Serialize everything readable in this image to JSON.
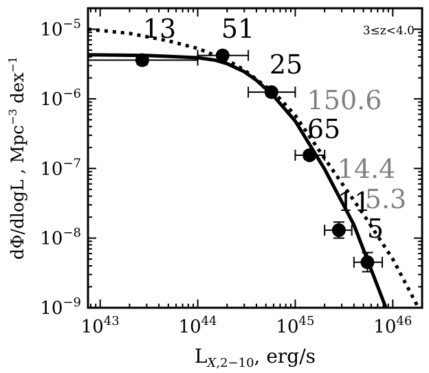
{
  "chart_data": {
    "type": "scatter",
    "title": "",
    "xlabel": "L_{X,2-10}, erg/s",
    "ylabel": "dΦ/dlogL , Mpc^{-3} dex^{-1}",
    "xscale": "log",
    "yscale": "log",
    "xlim": [
      7.5e+42,
      2e+46
    ],
    "ylim": [
      1e-09,
      2e-05
    ],
    "annotation": "3≤z<4.0",
    "x_ticks": [
      {
        "value": 1e+43,
        "base": "10",
        "exp": "43"
      },
      {
        "value": 1e+44,
        "base": "10",
        "exp": "44"
      },
      {
        "value": 1e+45,
        "base": "10",
        "exp": "45"
      },
      {
        "value": 1e+46,
        "base": "10",
        "exp": "46"
      }
    ],
    "y_ticks": [
      {
        "value": 1e-09,
        "base": "10",
        "exp": "−9"
      },
      {
        "value": 1e-08,
        "base": "10",
        "exp": "−8"
      },
      {
        "value": 1e-07,
        "base": "10",
        "exp": "−7"
      },
      {
        "value": 1e-06,
        "base": "10",
        "exp": "−6"
      },
      {
        "value": 1e-05,
        "base": "10",
        "exp": "−5"
      }
    ],
    "points": [
      {
        "x": 2.7e+43,
        "y": 3.6e-06,
        "xerr": [
          7.5e+42,
          1e+44
        ],
        "yerr": [
          3.1e-06,
          4.2e-06
        ],
        "count": "13"
      },
      {
        "x": 1.8e+44,
        "y": 4.2e-06,
        "xerr": [
          1e+44,
          3.3e+44
        ],
        "yerr": [
          3.9e-06,
          4.6e-06
        ],
        "count": "51"
      },
      {
        "x": 5.7e+44,
        "y": 1.25e-06,
        "xerr": [
          3.3e+44,
          1e+45
        ],
        "yerr": [
          1.1e-06,
          1.4e-06
        ],
        "count": "25"
      },
      {
        "x": 1.4e+45,
        "y": 1.55e-07,
        "xerr": [
          1e+45,
          2e+45
        ],
        "yerr": [
          1.35e-07,
          1.75e-07
        ],
        "count": "65"
      },
      {
        "x": 2.8e+45,
        "y": 1.3e-08,
        "xerr": [
          2e+45,
          3.8e+45
        ],
        "yerr": [
          1e-08,
          1.7e-08
        ],
        "count": "11"
      },
      {
        "x": 5.5e+45,
        "y": 4.5e-09,
        "xerr": [
          4e+45,
          7.8e+45
        ],
        "yerr": [
          3.3e-09,
          6.2e-09
        ],
        "count": "5"
      }
    ],
    "extra_labels": [
      {
        "text": "150.6",
        "color": "#808080"
      },
      {
        "text": "14.4",
        "color": "#808080"
      },
      {
        "text": "5.3",
        "color": "#808080"
      }
    ],
    "series": [
      {
        "style": "solid",
        "color": "#000000",
        "x": [
          7.5e+42,
          3e+43,
          1e+44,
          1.5e+44,
          2e+44,
          3e+44,
          4e+44,
          6e+44,
          1e+45,
          2e+45,
          4e+45,
          8.5e+45
        ],
        "y": [
          4.3e-06,
          4.2e-06,
          3.9e-06,
          3.6e-06,
          3.2e-06,
          2.45e-06,
          1.85e-06,
          1.1e-06,
          4.8e-07,
          9.8e-08,
          1.55e-08,
          1e-09
        ]
      },
      {
        "style": "dotted",
        "color": "#000000",
        "x": [
          7.5e+42,
          2e+43,
          5e+43,
          1e+44,
          2e+44,
          3e+44,
          5e+44,
          7e+44,
          1e+45,
          2e+45,
          5e+45,
          1e+46,
          1.8e+46
        ],
        "y": [
          1e-05,
          8.7e-06,
          6.8e-06,
          5.3e-06,
          3.6e-06,
          2.6e-06,
          1.5e-06,
          1e-06,
          5.8e-07,
          1.4e-07,
          2.2e-08,
          5e-09,
          1.05e-09
        ]
      }
    ]
  }
}
